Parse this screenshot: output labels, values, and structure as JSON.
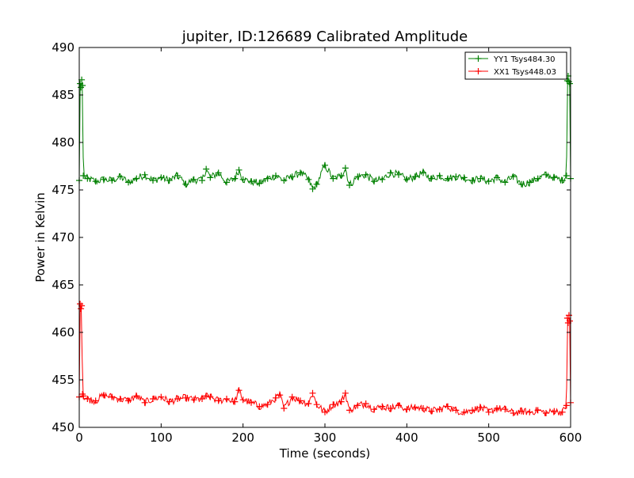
{
  "chart_data": {
    "type": "line",
    "title": "jupiter, ID:126689 Calibrated Amplitude",
    "xlabel": "Time (seconds)",
    "ylabel": "Power in Kelvin",
    "xlim": [
      0,
      600
    ],
    "ylim": [
      450,
      490
    ],
    "xticks": [
      0,
      100,
      200,
      300,
      400,
      500,
      600
    ],
    "yticks": [
      450,
      455,
      460,
      465,
      470,
      475,
      480,
      485,
      490
    ],
    "grid": false,
    "legend_position": "top-right",
    "marker": "plus",
    "series": [
      {
        "name": "YY1 Tsys484.30",
        "color": "#008000",
        "x": [
          0,
          1,
          2,
          3,
          4,
          5,
          10,
          20,
          30,
          40,
          50,
          60,
          70,
          80,
          90,
          100,
          110,
          120,
          130,
          140,
          150,
          155,
          160,
          170,
          180,
          190,
          195,
          200,
          210,
          220,
          230,
          240,
          250,
          260,
          270,
          280,
          285,
          290,
          300,
          310,
          320,
          325,
          330,
          340,
          350,
          360,
          370,
          380,
          390,
          400,
          410,
          420,
          430,
          440,
          450,
          460,
          470,
          480,
          490,
          500,
          510,
          520,
          530,
          540,
          550,
          560,
          570,
          580,
          590,
          595,
          596,
          597,
          598,
          599,
          600
        ],
        "y": [
          476.0,
          486.2,
          485.8,
          486.6,
          486.0,
          476.5,
          476.2,
          475.9,
          476.1,
          476.0,
          476.4,
          475.8,
          476.2,
          476.6,
          476.0,
          476.3,
          476.0,
          476.5,
          475.6,
          476.1,
          476.0,
          477.2,
          476.3,
          476.8,
          475.8,
          476.2,
          477.1,
          476.1,
          475.9,
          475.7,
          476.2,
          476.5,
          476.0,
          476.4,
          476.8,
          476.1,
          475.1,
          475.6,
          477.6,
          476.2,
          476.5,
          477.3,
          475.5,
          476.4,
          476.6,
          475.9,
          476.1,
          476.8,
          476.6,
          476.1,
          476.4,
          476.8,
          476.2,
          476.5,
          476.2,
          476.4,
          476.3,
          476.0,
          476.2,
          475.9,
          476.3,
          475.8,
          476.4,
          475.6,
          475.8,
          476.2,
          476.6,
          476.3,
          476.0,
          476.5,
          486.5,
          487.0,
          486.4,
          486.2,
          476.2
        ]
      },
      {
        "name": "XX1 Tsys448.03",
        "color": "#ff0000",
        "x": [
          0,
          1,
          2,
          3,
          4,
          5,
          10,
          20,
          30,
          40,
          50,
          60,
          70,
          80,
          90,
          100,
          110,
          120,
          130,
          140,
          150,
          155,
          160,
          170,
          180,
          190,
          195,
          200,
          210,
          220,
          230,
          240,
          245,
          250,
          260,
          270,
          280,
          285,
          290,
          300,
          310,
          320,
          325,
          330,
          340,
          350,
          360,
          370,
          380,
          390,
          400,
          410,
          420,
          430,
          440,
          450,
          460,
          470,
          480,
          490,
          500,
          510,
          520,
          530,
          540,
          550,
          560,
          570,
          580,
          590,
          595,
          596,
          597,
          598,
          599,
          600
        ],
        "y": [
          453.2,
          463.0,
          462.5,
          462.8,
          453.5,
          453.3,
          453.0,
          452.8,
          453.4,
          453.2,
          453.0,
          452.8,
          453.3,
          452.6,
          453.0,
          453.2,
          452.7,
          453.0,
          453.1,
          452.9,
          453.0,
          453.3,
          453.2,
          452.8,
          453.0,
          452.7,
          453.9,
          452.9,
          452.6,
          452.2,
          452.4,
          453.1,
          453.4,
          452.0,
          453.2,
          452.8,
          452.5,
          453.6,
          452.4,
          451.6,
          452.4,
          452.7,
          453.6,
          451.8,
          452.3,
          452.5,
          451.9,
          452.2,
          452.0,
          452.3,
          451.9,
          452.1,
          452.0,
          451.7,
          451.9,
          452.2,
          451.8,
          451.6,
          451.8,
          452.1,
          451.6,
          452.0,
          451.9,
          451.5,
          451.7,
          451.6,
          451.8,
          451.5,
          451.7,
          451.6,
          452.3,
          461.5,
          461.0,
          461.8,
          461.2,
          452.6
        ]
      }
    ]
  }
}
